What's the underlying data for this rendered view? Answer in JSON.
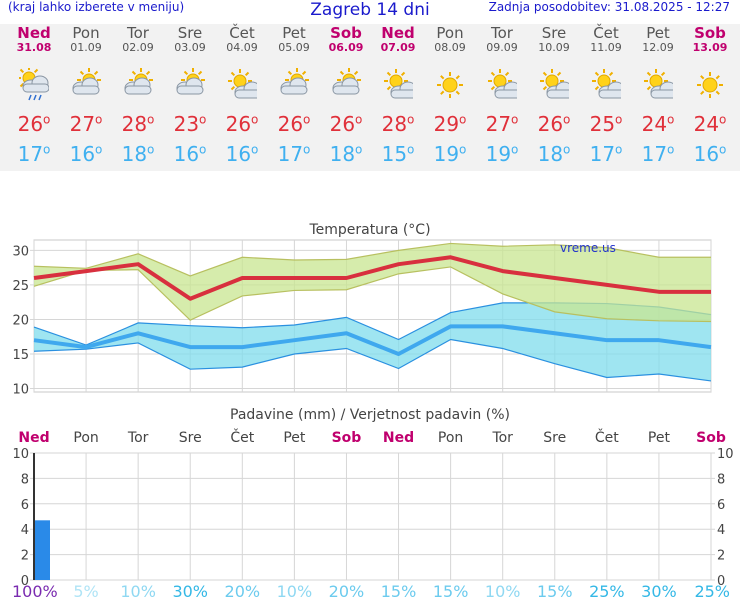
{
  "header": {
    "menu_hint": "(kraj lahko izberete v meniju)",
    "title": "Zagreb 14 dni",
    "updated": "Zadnja posodobitev: 31.08.2025 - 12:27"
  },
  "days": [
    {
      "name": "Ned",
      "date": "31.08",
      "weekend": true,
      "icon": "rain-sun-cloud-icon",
      "tmax": "26",
      "tmin": "17"
    },
    {
      "name": "Pon",
      "date": "01.09",
      "weekend": false,
      "icon": "cloudy-sun-icon",
      "tmax": "27",
      "tmin": "16"
    },
    {
      "name": "Tor",
      "date": "02.09",
      "weekend": false,
      "icon": "cloudy-sun-icon",
      "tmax": "28",
      "tmin": "18"
    },
    {
      "name": "Sre",
      "date": "03.09",
      "weekend": false,
      "icon": "cloudy-sun-icon",
      "tmax": "23",
      "tmin": "16"
    },
    {
      "name": "Čet",
      "date": "04.09",
      "weekend": false,
      "icon": "partly-cloudy-icon",
      "tmax": "26",
      "tmin": "16"
    },
    {
      "name": "Pet",
      "date": "05.09",
      "weekend": false,
      "icon": "cloudy-sun-icon",
      "tmax": "26",
      "tmin": "17"
    },
    {
      "name": "Sob",
      "date": "06.09",
      "weekend": true,
      "icon": "cloudy-sun-icon",
      "tmax": "26",
      "tmin": "18"
    },
    {
      "name": "Ned",
      "date": "07.09",
      "weekend": true,
      "icon": "partly-cloudy-icon",
      "tmax": "28",
      "tmin": "15"
    },
    {
      "name": "Pon",
      "date": "08.09",
      "weekend": false,
      "icon": "sun-icon",
      "tmax": "29",
      "tmin": "19"
    },
    {
      "name": "Tor",
      "date": "09.09",
      "weekend": false,
      "icon": "partly-cloudy-icon",
      "tmax": "27",
      "tmin": "19"
    },
    {
      "name": "Sre",
      "date": "10.09",
      "weekend": false,
      "icon": "partly-cloudy-icon",
      "tmax": "26",
      "tmin": "18"
    },
    {
      "name": "Čet",
      "date": "11.09",
      "weekend": false,
      "icon": "partly-cloudy-icon",
      "tmax": "25",
      "tmin": "17"
    },
    {
      "name": "Pet",
      "date": "12.09",
      "weekend": false,
      "icon": "partly-cloudy-icon",
      "tmax": "24",
      "tmin": "17"
    },
    {
      "name": "Sob",
      "date": "13.09",
      "weekend": true,
      "icon": "sun-icon",
      "tmax": "24",
      "tmin": "16"
    }
  ],
  "colors": {
    "tmax": "#e0303a",
    "tmin": "#3fb0f0",
    "weekend": "#c0006e",
    "weekday": "#555555",
    "precip_bar": "#2a8ae8"
  },
  "chart_data": [
    {
      "type": "line",
      "title": "Temperatura (°C)",
      "watermark": "vreme.us",
      "ylim": [
        9.5,
        31.5
      ],
      "yticks": [
        10,
        15,
        20,
        25,
        30
      ],
      "series": [
        {
          "values": [
            26,
            27,
            28,
            23,
            26,
            26,
            26,
            28,
            29,
            27,
            26,
            25,
            24,
            24
          ],
          "band_low": [
            24.8,
            27.1,
            27.2,
            19.9,
            23.4,
            24.2,
            24.3,
            26.6,
            27.6,
            23.7,
            21.1,
            20.1,
            19.8,
            19.7
          ],
          "band_high": [
            27.7,
            27.4,
            29.5,
            26.3,
            29.0,
            28.6,
            28.7,
            30.0,
            31.0,
            30.6,
            30.8,
            30.4,
            29.0,
            29.0
          ]
        },
        {
          "values": [
            17,
            16,
            18,
            16,
            16,
            17,
            18,
            15,
            19,
            19,
            18,
            17,
            17,
            16
          ],
          "band_low": [
            15.4,
            15.7,
            16.6,
            12.8,
            13.1,
            15.0,
            15.8,
            12.9,
            17.1,
            15.8,
            13.6,
            11.6,
            12.1,
            11.1
          ],
          "band_high": [
            18.9,
            16.3,
            19.5,
            19.1,
            18.8,
            19.2,
            20.3,
            17.1,
            21.0,
            22.4,
            22.4,
            22.3,
            21.8,
            20.7
          ]
        }
      ]
    },
    {
      "type": "bar",
      "title": "Padavine (mm) / Verjetnost padavin (%)",
      "ylim": [
        0,
        10
      ],
      "yticks": [
        0,
        2,
        4,
        6,
        8,
        10
      ],
      "categories": [
        "Ned",
        "Pon",
        "Tor",
        "Sre",
        "Čet",
        "Pet",
        "Sob",
        "Ned",
        "Pon",
        "Tor",
        "Sre",
        "Čet",
        "Pet",
        "Sob"
      ],
      "values": [
        4.7,
        0,
        0,
        0,
        0,
        0,
        0,
        0,
        0,
        0,
        0,
        0,
        0,
        0
      ],
      "probability": [
        "100%",
        "5%",
        "10%",
        "30%",
        "20%",
        "10%",
        "20%",
        "15%",
        "15%",
        "10%",
        "15%",
        "25%",
        "30%",
        "25%"
      ]
    }
  ]
}
